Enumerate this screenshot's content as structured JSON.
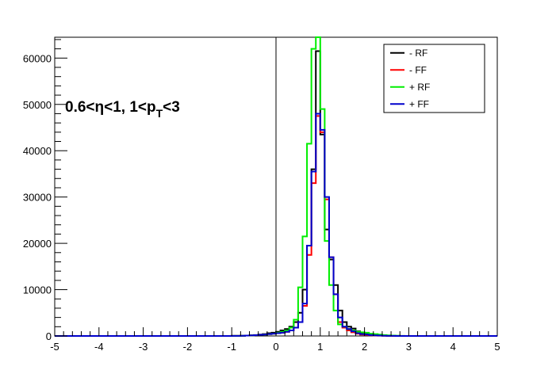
{
  "chart_data": {
    "type": "line",
    "title": "",
    "xlabel": "",
    "ylabel": "",
    "xlim": [
      -5,
      5
    ],
    "ylim": [
      0,
      64500
    ],
    "x_ticks": [
      -5,
      -4,
      -3,
      -2,
      -1,
      0,
      1,
      2,
      3,
      4,
      5
    ],
    "y_ticks": [
      0,
      10000,
      20000,
      30000,
      40000,
      50000,
      60000
    ],
    "vertical_line_x": 0,
    "bin_width": 0.1,
    "bin_edges_start": -5,
    "annotation": {
      "main": "0.6<η<1, 1<p",
      "sub": "T",
      "tail": "<3"
    },
    "legend_position": "top-right",
    "series": [
      {
        "name": "- RF",
        "color": "#000000",
        "values": [
          0,
          0,
          0,
          0,
          0,
          0,
          0,
          0,
          0,
          0,
          0,
          0,
          0,
          0,
          0,
          0,
          0,
          0,
          0,
          0,
          0,
          0,
          0,
          0,
          0,
          0,
          0,
          0,
          0,
          0,
          0,
          0,
          0,
          0,
          0,
          0,
          0,
          0,
          0,
          0,
          20,
          30,
          50,
          80,
          150,
          200,
          300,
          400,
          600,
          700,
          900,
          1200,
          1500,
          2000,
          3000,
          5000,
          10000,
          19500,
          36000,
          61500,
          43500,
          23000,
          16500,
          11000,
          5500,
          3000,
          2000,
          1600,
          1000,
          600,
          400,
          300,
          200,
          120,
          80,
          50,
          30,
          20,
          10,
          5,
          0,
          0,
          0,
          0,
          0,
          0,
          0,
          0,
          0,
          0,
          0,
          0,
          0,
          0,
          0,
          0,
          0,
          0,
          0,
          0
        ]
      },
      {
        "name": "- FF",
        "color": "#ff0000",
        "values": [
          0,
          0,
          0,
          0,
          0,
          0,
          0,
          0,
          0,
          0,
          0,
          0,
          0,
          0,
          0,
          0,
          0,
          0,
          0,
          0,
          0,
          0,
          0,
          0,
          0,
          0,
          0,
          0,
          0,
          0,
          0,
          0,
          0,
          0,
          0,
          0,
          0,
          0,
          0,
          0,
          20,
          30,
          50,
          80,
          120,
          180,
          250,
          300,
          400,
          500,
          600,
          700,
          900,
          1200,
          1800,
          3000,
          6500,
          17500,
          33000,
          47500,
          44000,
          29500,
          17000,
          9000,
          3000,
          1800,
          1200,
          800,
          500,
          300,
          200,
          150,
          100,
          60,
          40,
          30,
          20,
          10,
          5,
          0,
          0,
          0,
          0,
          0,
          0,
          0,
          0,
          0,
          0,
          0,
          0,
          0,
          0,
          0,
          0,
          0,
          0,
          0,
          0,
          0
        ]
      },
      {
        "name": "+ RF",
        "color": "#00ee00",
        "values": [
          0,
          0,
          0,
          0,
          0,
          0,
          0,
          0,
          0,
          0,
          0,
          0,
          0,
          0,
          0,
          0,
          0,
          0,
          0,
          0,
          0,
          0,
          0,
          0,
          0,
          0,
          0,
          0,
          0,
          0,
          0,
          0,
          0,
          0,
          0,
          0,
          0,
          0,
          0,
          0,
          20,
          30,
          50,
          80,
          120,
          180,
          250,
          300,
          400,
          500,
          700,
          900,
          1200,
          1800,
          3500,
          10500,
          21500,
          41500,
          62000,
          64500,
          49000,
          20500,
          11000,
          5500,
          2500,
          2000,
          1500,
          1200,
          900,
          800,
          700,
          500,
          400,
          300,
          200,
          120,
          80,
          50,
          30,
          10,
          0,
          0,
          0,
          0,
          0,
          0,
          0,
          0,
          0,
          0,
          0,
          0,
          0,
          0,
          0,
          0,
          0,
          0,
          0,
          0
        ]
      },
      {
        "name": "+ FF",
        "color": "#0000cc",
        "values": [
          0,
          0,
          0,
          0,
          0,
          0,
          0,
          0,
          0,
          0,
          0,
          0,
          0,
          0,
          0,
          0,
          0,
          0,
          0,
          0,
          0,
          0,
          0,
          0,
          0,
          0,
          0,
          0,
          0,
          0,
          0,
          0,
          0,
          0,
          0,
          0,
          0,
          0,
          0,
          0,
          20,
          30,
          50,
          80,
          120,
          180,
          250,
          300,
          400,
          500,
          600,
          700,
          900,
          1200,
          1800,
          3000,
          7000,
          19500,
          35500,
          48000,
          44500,
          30000,
          17000,
          9000,
          4000,
          2000,
          1500,
          1000,
          600,
          400,
          300,
          200,
          120,
          80,
          50,
          30,
          20,
          10,
          5,
          0,
          0,
          0,
          0,
          0,
          0,
          0,
          0,
          0,
          0,
          0,
          0,
          0,
          0,
          0,
          0,
          0,
          0,
          0,
          0,
          0
        ]
      }
    ]
  }
}
